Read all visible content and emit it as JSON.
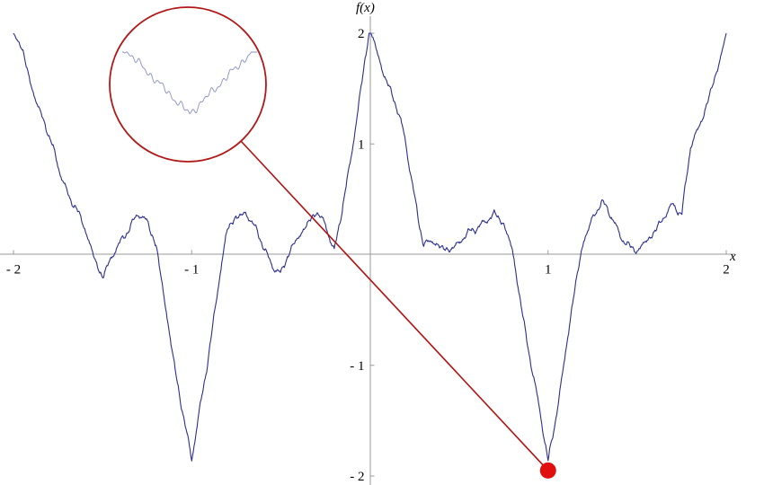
{
  "chart_data": {
    "type": "line",
    "title": "",
    "xlabel": "x",
    "ylabel": "f(x)",
    "xlim": [
      -2,
      2
    ],
    "ylim": [
      -2,
      2
    ],
    "x_ticks": [
      -2,
      -1,
      1,
      2
    ],
    "x_tick_labels": [
      "- 2",
      "- 1",
      "1",
      "2"
    ],
    "y_ticks": [
      2,
      1,
      -1,
      -2
    ],
    "y_tick_labels": [
      "2",
      "1",
      "- 1",
      "- 2"
    ],
    "grid": false,
    "legend": "none",
    "series": [
      {
        "color": "#2b2f8f",
        "x": [
          -2,
          -1.8,
          -1.5,
          -1.3,
          -1.25,
          -1.2,
          -1.0,
          -0.8,
          -0.75,
          -0.7,
          -0.5,
          -0.3,
          -0.25,
          -0.2,
          0,
          0.2,
          0.25,
          0.3,
          0.5,
          0.7,
          0.75,
          0.8,
          1.0,
          1.2,
          1.25,
          1.3,
          1.5,
          1.7,
          1.75,
          1.8,
          2
        ],
        "y": [
          2,
          1.0,
          -0.15,
          0.4,
          0.32,
          0.1,
          -1.9,
          0.1,
          0.32,
          0.4,
          -0.15,
          0.4,
          0.32,
          0.1,
          2.0,
          0.95,
          0.55,
          0.1,
          0.05,
          0.4,
          0.32,
          0.1,
          -1.85,
          0.1,
          0.32,
          0.4,
          0.0,
          0.4,
          0.32,
          1.0,
          2.0
        ]
      }
    ],
    "annotations": {
      "highlight_point": {
        "x": 1.0,
        "y": -1.95,
        "color": "#e01010"
      },
      "connector_color": "#b01010",
      "magnifier_border_color": "#b01818",
      "inset_curve_color": "#8890c4"
    }
  }
}
